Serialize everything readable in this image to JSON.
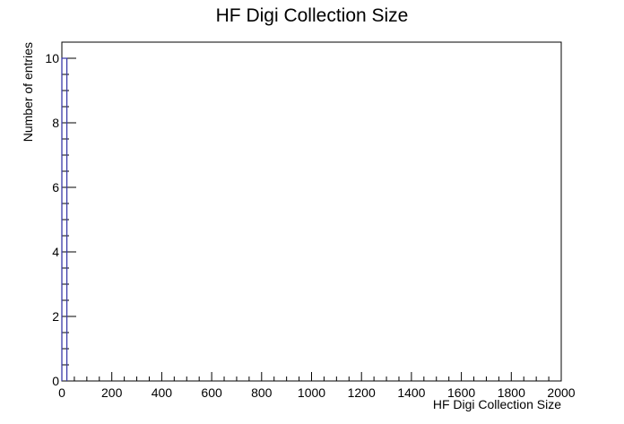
{
  "chart_data": {
    "type": "bar",
    "title": "HF Digi Collection Size",
    "xlabel": "HF Digi Collection Size",
    "ylabel": "Number of entries",
    "xlim": [
      0,
      2000
    ],
    "ylim": [
      0,
      10.5
    ],
    "x_ticks": [
      "0",
      "200",
      "400",
      "600",
      "800",
      "1000",
      "1200",
      "1400",
      "1600",
      "1800",
      "2000"
    ],
    "y_ticks": [
      "0",
      "2",
      "4",
      "6",
      "8",
      "10"
    ],
    "bins": [
      {
        "x_low": 0,
        "x_high": 20,
        "value": 10
      }
    ],
    "grid": false,
    "legend": false,
    "colors": {
      "histogram_line": "#3a3aa8",
      "axes": "#000000"
    }
  }
}
